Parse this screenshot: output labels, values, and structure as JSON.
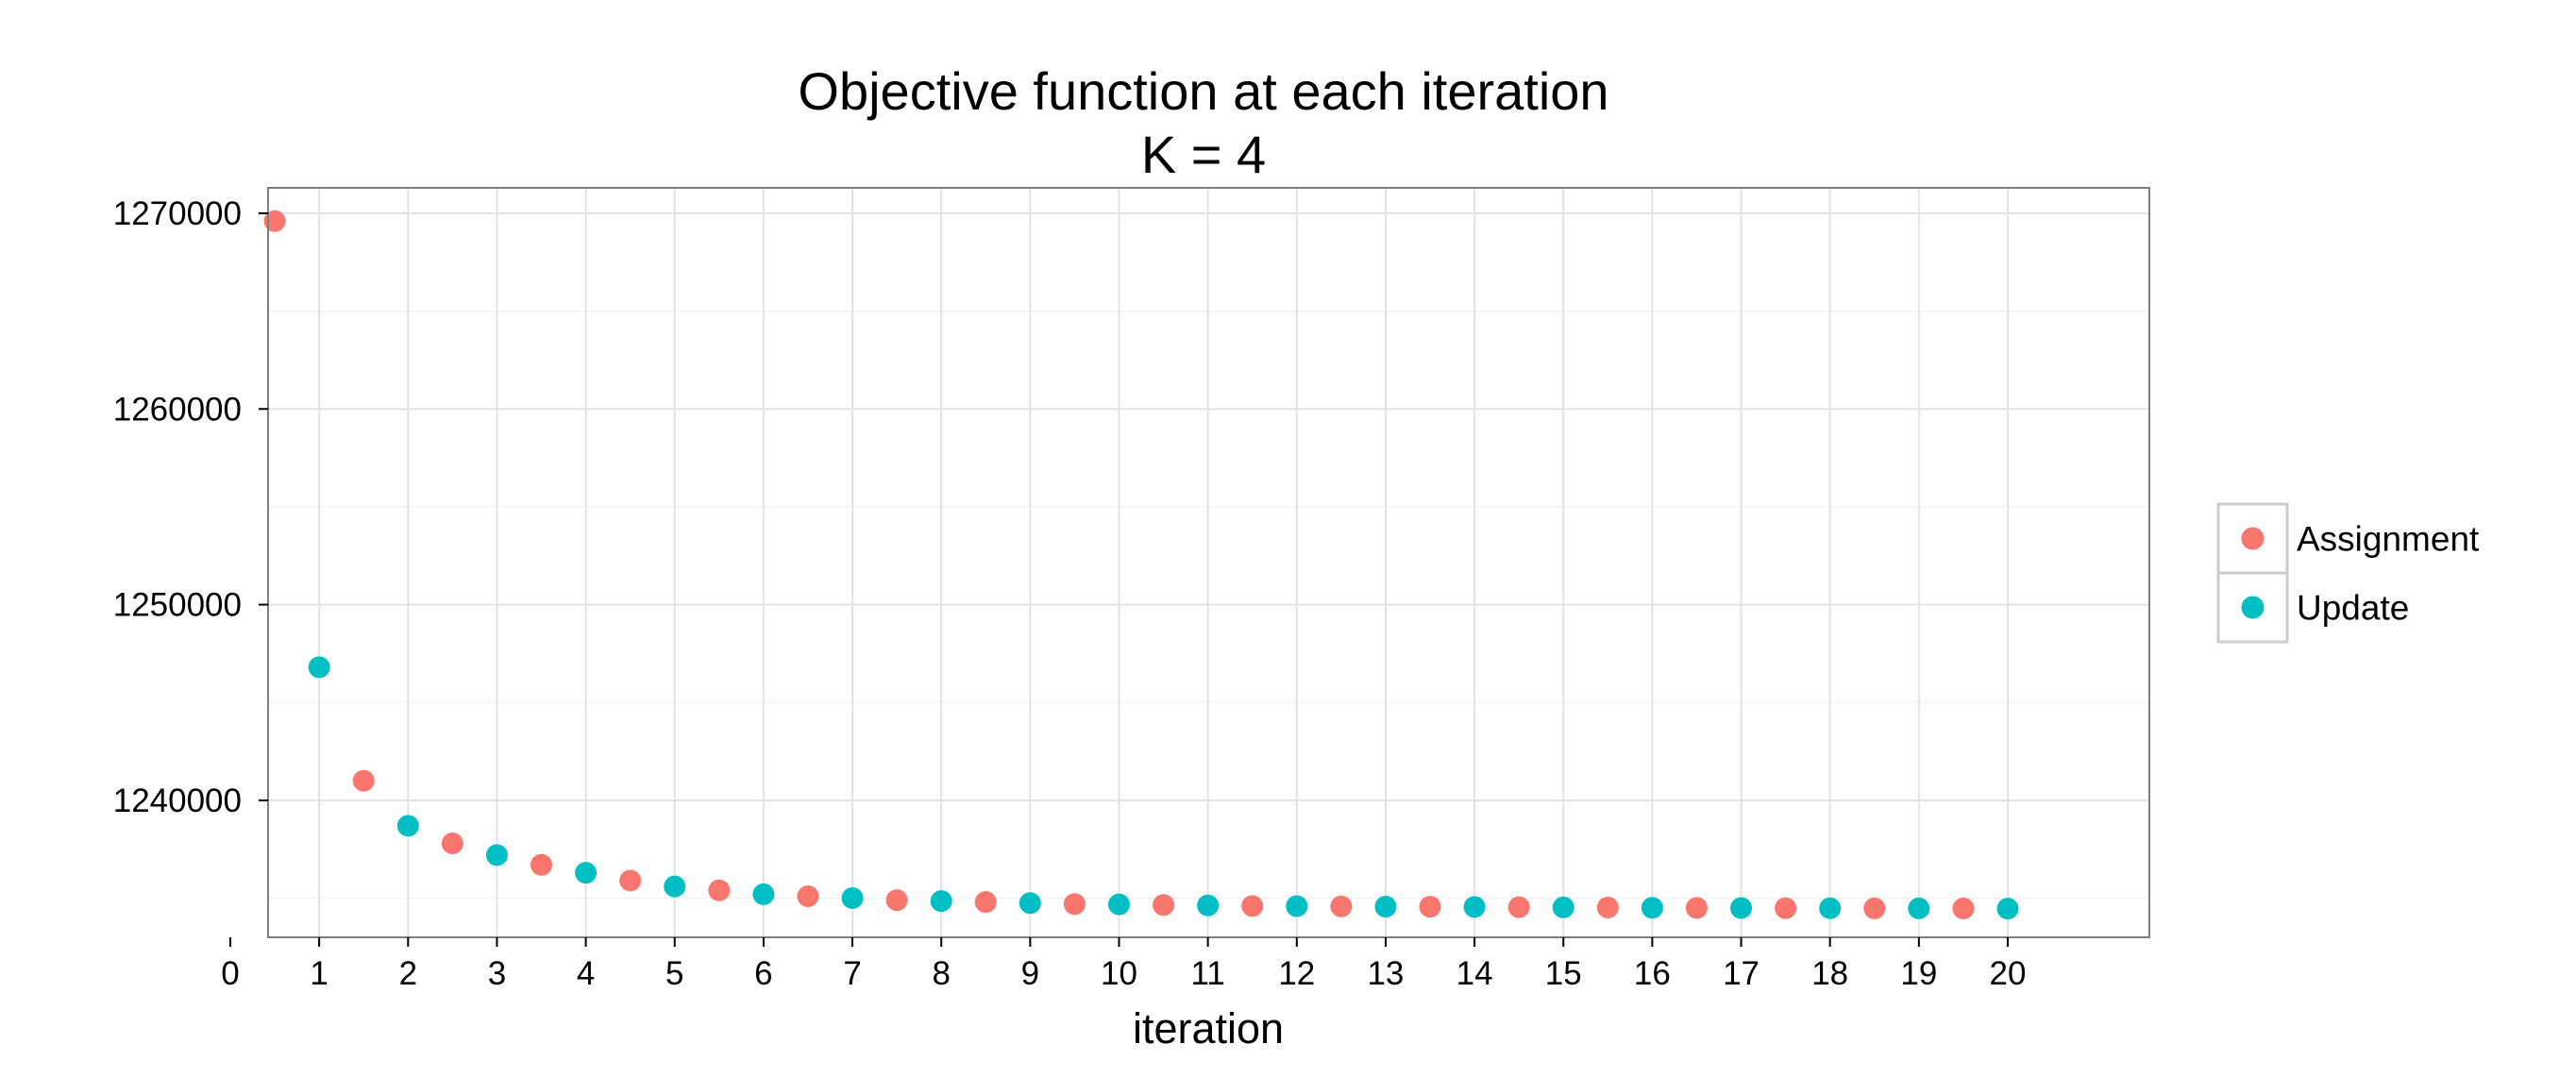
{
  "chart_data": {
    "type": "scatter",
    "title": "Objective function at each iteration",
    "subtitle": "K = 4",
    "xlabel": "iteration",
    "ylabel": "",
    "xlim": [
      0,
      20
    ],
    "ylim": [
      1233000,
      1271300
    ],
    "x_ticks": [
      "0",
      "1",
      "2",
      "3",
      "4",
      "5",
      "6",
      "7",
      "8",
      "9",
      "10",
      "11",
      "12",
      "13",
      "14",
      "15",
      "16",
      "17",
      "18",
      "19",
      "20"
    ],
    "y_ticks": [
      "1240000",
      "1250000",
      "1260000",
      "1270000"
    ],
    "grid": true,
    "legend_position": "right",
    "series": [
      {
        "name": "Assignment",
        "color": "#F8766D",
        "x": [
          0.5,
          1.5,
          2.5,
          3.5,
          4.5,
          5.5,
          6.5,
          7.5,
          8.5,
          9.5,
          10.5,
          11.5,
          12.5,
          13.5,
          14.5,
          15.5,
          16.5,
          17.5,
          18.5,
          19.5
        ],
        "y": [
          1269600,
          1241000,
          1237800,
          1236700,
          1235900,
          1235400,
          1235100,
          1234900,
          1234800,
          1234700,
          1234650,
          1234600,
          1234580,
          1234560,
          1234540,
          1234520,
          1234500,
          1234490,
          1234480,
          1234470
        ]
      },
      {
        "name": "Update",
        "color": "#00BFC4",
        "x": [
          1,
          2,
          3,
          4,
          5,
          6,
          7,
          8,
          9,
          10,
          11,
          12,
          13,
          14,
          15,
          16,
          17,
          18,
          19,
          20
        ],
        "y": [
          1246800,
          1238700,
          1237200,
          1236300,
          1235600,
          1235200,
          1235000,
          1234850,
          1234750,
          1234680,
          1234630,
          1234590,
          1234570,
          1234550,
          1234530,
          1234510,
          1234495,
          1234485,
          1234475,
          1234465
        ]
      }
    ]
  }
}
